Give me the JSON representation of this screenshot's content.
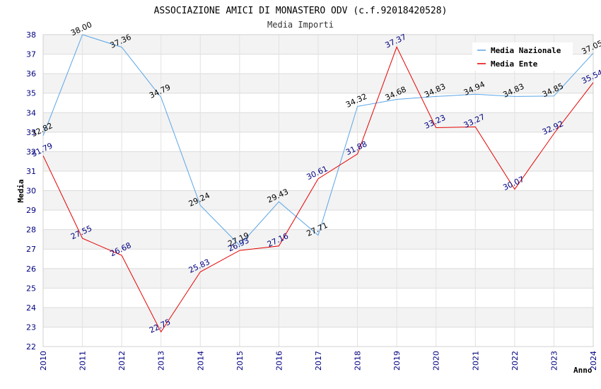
{
  "chart_data": {
    "type": "line",
    "title": "ASSOCIAZIONE AMICI DI MONASTERO ODV (c.f.92018420528)",
    "subtitle": "Media Importi",
    "xlabel": "Anno",
    "ylabel": "Media",
    "x": [
      "2010",
      "2011",
      "2012",
      "2013",
      "2014",
      "2015",
      "2016",
      "2017",
      "2018",
      "2019",
      "2020",
      "2021",
      "2022",
      "2023",
      "2024"
    ],
    "ylim": [
      22,
      38
    ],
    "yticks": [
      22,
      23,
      24,
      25,
      26,
      27,
      28,
      29,
      30,
      31,
      32,
      33,
      34,
      35,
      36,
      37,
      38
    ],
    "grid": true,
    "legend_position": "top-right",
    "series": [
      {
        "name": "Media Nazionale",
        "color": "#5aa5e6",
        "label_color": "#000000",
        "values": [
          32.82,
          38.0,
          37.36,
          34.79,
          29.24,
          27.19,
          29.43,
          27.71,
          34.32,
          34.68,
          34.83,
          34.94,
          34.83,
          34.85,
          37.05
        ],
        "labels": [
          "32.82",
          "38.00",
          "37.36",
          "34.79",
          "29.24",
          "27.19",
          "29.43",
          "27.71",
          "34.32",
          "34.68",
          "34.83",
          "34.94",
          "34.83",
          "34.85",
          "37.05"
        ]
      },
      {
        "name": "Media Ente",
        "color": "#e60000",
        "label_color": "#000080",
        "values": [
          31.79,
          27.55,
          26.68,
          22.75,
          25.83,
          26.93,
          27.16,
          30.61,
          31.88,
          37.37,
          33.23,
          33.27,
          30.07,
          32.92,
          35.54
        ],
        "labels": [
          "31.79",
          "27.55",
          "26.68",
          "22.75",
          "25.83",
          "26.93",
          "27.16",
          "30.61",
          "31.88",
          "37.37",
          "33.23",
          "33.27",
          "30.07",
          "32.92",
          "35.54"
        ]
      }
    ]
  }
}
